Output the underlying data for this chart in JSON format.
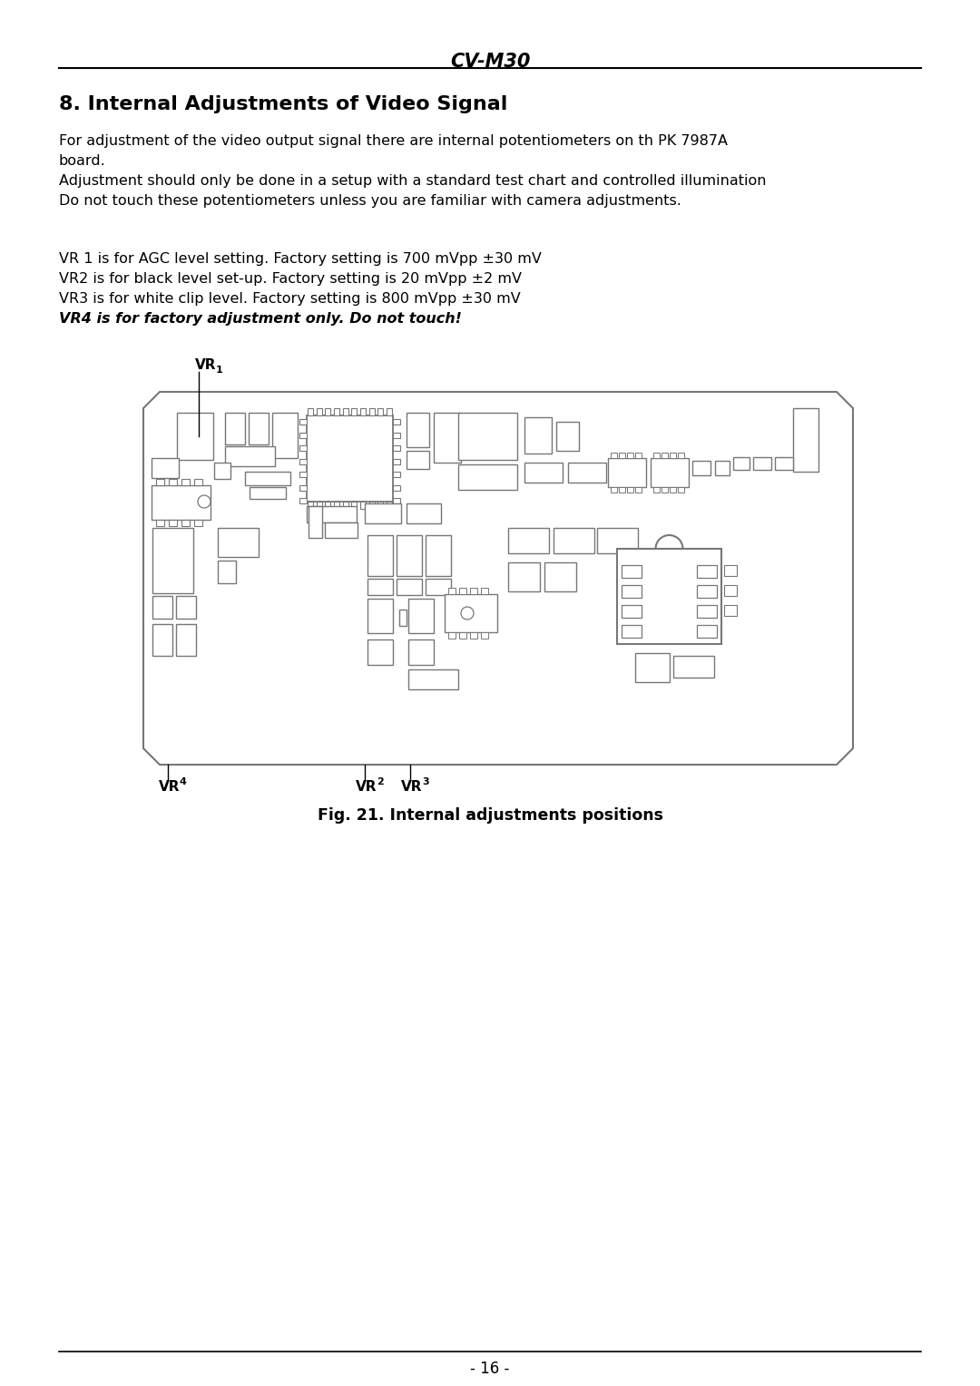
{
  "page_title": "CV-M30",
  "section_title": "8. Internal Adjustments of Video Signal",
  "paragraph1_lines": [
    "For adjustment of the video output signal there are internal potentiometers on th PK 7987A",
    "board.",
    "Adjustment should only be done in a setup with a standard test chart and controlled illumination",
    "Do not touch these potentiometers unless you are familiar with camera adjustments."
  ],
  "paragraph2_lines": [
    "VR 1 is for AGC level setting. Factory setting is 700 mVpp ±30 mV",
    "VR2 is for black level set-up. Factory setting is 20 mVpp ±2 mV",
    "VR3 is for white clip level. Factory setting is 800 mVpp ±30 mV"
  ],
  "paragraph2_italic": "VR4 is for factory adjustment only. Do not touch!",
  "fig_caption": "Fig. 21. Internal adjustments positions",
  "page_number": "- 16 -",
  "bg_color": "#ffffff",
  "text_color": "#000000",
  "edge_color": "#777777"
}
